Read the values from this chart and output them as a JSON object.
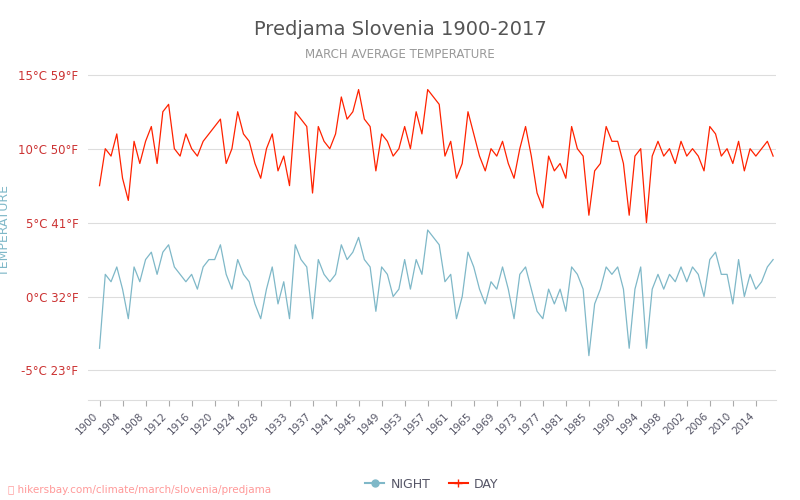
{
  "title": "Predjama Slovenia 1900-2017",
  "subtitle": "MARCH AVERAGE TEMPERATURE",
  "ylabel": "TEMPERATURE",
  "yticks_c": [
    -5,
    0,
    5,
    10,
    15
  ],
  "yticks_f": [
    23,
    32,
    41,
    50,
    59
  ],
  "ylim": [
    -7,
    16
  ],
  "years": [
    1900,
    1901,
    1902,
    1903,
    1904,
    1905,
    1906,
    1907,
    1908,
    1909,
    1910,
    1911,
    1912,
    1913,
    1914,
    1915,
    1916,
    1917,
    1918,
    1919,
    1920,
    1921,
    1922,
    1923,
    1924,
    1925,
    1926,
    1927,
    1928,
    1929,
    1930,
    1931,
    1932,
    1933,
    1934,
    1935,
    1936,
    1937,
    1938,
    1939,
    1940,
    1941,
    1942,
    1943,
    1944,
    1945,
    1946,
    1947,
    1948,
    1949,
    1950,
    1951,
    1952,
    1953,
    1954,
    1955,
    1956,
    1957,
    1958,
    1959,
    1960,
    1961,
    1962,
    1963,
    1964,
    1965,
    1966,
    1967,
    1968,
    1969,
    1970,
    1971,
    1972,
    1973,
    1974,
    1975,
    1976,
    1977,
    1978,
    1979,
    1980,
    1981,
    1982,
    1983,
    1984,
    1985,
    1986,
    1987,
    1988,
    1989,
    1990,
    1991,
    1992,
    1993,
    1994,
    1995,
    1996,
    1997,
    1998,
    1999,
    2000,
    2001,
    2002,
    2003,
    2004,
    2005,
    2006,
    2007,
    2008,
    2009,
    2010,
    2011,
    2012,
    2013,
    2014,
    2015,
    2016,
    2017
  ],
  "day_temps": [
    7.5,
    10.0,
    9.5,
    11.0,
    8.0,
    6.5,
    10.5,
    9.0,
    10.5,
    11.5,
    9.0,
    12.5,
    13.0,
    10.0,
    9.5,
    11.0,
    10.0,
    9.5,
    10.5,
    11.0,
    11.5,
    12.0,
    9.0,
    10.0,
    12.5,
    11.0,
    10.5,
    9.0,
    8.0,
    10.0,
    11.0,
    8.5,
    9.5,
    7.5,
    12.5,
    12.0,
    11.5,
    7.0,
    11.5,
    10.5,
    10.0,
    11.0,
    13.5,
    12.0,
    12.5,
    14.0,
    12.0,
    11.5,
    8.5,
    11.0,
    10.5,
    9.5,
    10.0,
    11.5,
    10.0,
    12.5,
    11.0,
    14.0,
    13.5,
    13.0,
    9.5,
    10.5,
    8.0,
    9.0,
    12.5,
    11.0,
    9.5,
    8.5,
    10.0,
    9.5,
    10.5,
    9.0,
    8.0,
    10.0,
    11.5,
    9.5,
    7.0,
    6.0,
    9.5,
    8.5,
    9.0,
    8.0,
    11.5,
    10.0,
    9.5,
    5.5,
    8.5,
    9.0,
    11.5,
    10.5,
    10.5,
    9.0,
    5.5,
    9.5,
    10.0,
    5.0,
    9.5,
    10.5,
    9.5,
    10.0,
    9.0,
    10.5,
    9.5,
    10.0,
    9.5,
    8.5,
    11.5,
    11.0,
    9.5,
    10.0,
    9.0,
    10.5,
    8.5,
    10.0,
    9.5,
    10.0,
    10.5,
    9.5
  ],
  "night_temps": [
    -3.5,
    1.5,
    1.0,
    2.0,
    0.5,
    -1.5,
    2.0,
    1.0,
    2.5,
    3.0,
    1.5,
    3.0,
    3.5,
    2.0,
    1.5,
    1.0,
    1.5,
    0.5,
    2.0,
    2.5,
    2.5,
    3.5,
    1.5,
    0.5,
    2.5,
    1.5,
    1.0,
    -0.5,
    -1.5,
    0.5,
    2.0,
    -0.5,
    1.0,
    -1.5,
    3.5,
    2.5,
    2.0,
    -1.5,
    2.5,
    1.5,
    1.0,
    1.5,
    3.5,
    2.5,
    3.0,
    4.0,
    2.5,
    2.0,
    -1.0,
    2.0,
    1.5,
    0.0,
    0.5,
    2.5,
    0.5,
    2.5,
    1.5,
    4.5,
    4.0,
    3.5,
    1.0,
    1.5,
    -1.5,
    0.0,
    3.0,
    2.0,
    0.5,
    -0.5,
    1.0,
    0.5,
    2.0,
    0.5,
    -1.5,
    1.5,
    2.0,
    0.5,
    -1.0,
    -1.5,
    0.5,
    -0.5,
    0.5,
    -1.0,
    2.0,
    1.5,
    0.5,
    -4.0,
    -0.5,
    0.5,
    2.0,
    1.5,
    2.0,
    0.5,
    -3.5,
    0.5,
    2.0,
    -3.5,
    0.5,
    1.5,
    0.5,
    1.5,
    1.0,
    2.0,
    1.0,
    2.0,
    1.5,
    0.0,
    2.5,
    3.0,
    1.5,
    1.5,
    -0.5,
    2.5,
    0.0,
    1.5,
    0.5,
    1.0,
    2.0,
    2.5
  ],
  "day_color": "#ff2200",
  "night_color": "#7fb8c8",
  "title_color": "#555555",
  "subtitle_color": "#999999",
  "ylabel_color": "#7fb8c8",
  "ytick_color": "#cc3333",
  "grid_color": "#dddddd",
  "bg_color": "#ffffff",
  "xtick_labels": [
    "1900",
    "1904",
    "1908",
    "1912",
    "1916",
    "1920",
    "1924",
    "1928",
    "1933",
    "1937",
    "1941",
    "1945",
    "1949",
    "1953",
    "1957",
    "1961",
    "1965",
    "1969",
    "1973",
    "1977",
    "1981",
    "1985",
    "1990",
    "1994",
    "1998",
    "2002",
    "2006",
    "2010",
    "2014"
  ],
  "xtick_positions": [
    1900,
    1904,
    1908,
    1912,
    1916,
    1920,
    1924,
    1928,
    1933,
    1937,
    1941,
    1945,
    1949,
    1953,
    1957,
    1961,
    1965,
    1969,
    1973,
    1977,
    1981,
    1985,
    1990,
    1994,
    1998,
    2002,
    2006,
    2010,
    2014
  ],
  "legend_night_label": "NIGHT",
  "legend_day_label": "DAY",
  "url_text": "hikersbay.com/climate/march/slovenia/predjama",
  "url_color": "#ff9999",
  "url_icon_color": "#ffaa00"
}
